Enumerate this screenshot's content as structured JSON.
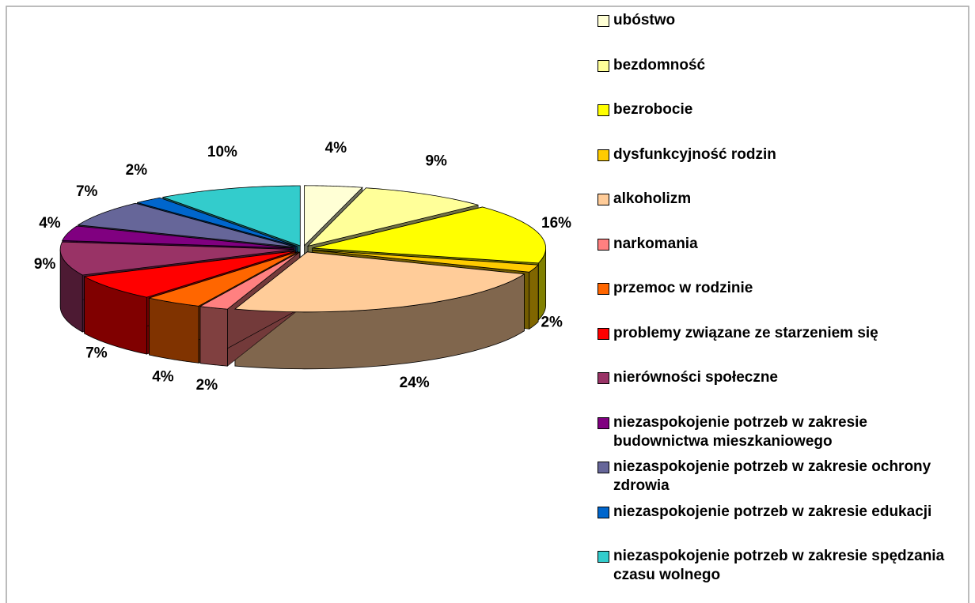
{
  "chart_data": {
    "type": "pie",
    "categories": [
      "ubóstwo",
      "bezdomność",
      "bezrobocie",
      "dysfunkcyjność rodzin",
      "alkoholizm",
      "narkomania",
      "przemoc w rodzinie",
      "problemy związane ze starzeniem się",
      "nierówności społeczne",
      "niezaspokojenie potrzeb w zakresie budownictwa mieszkaniowego",
      "niezaspokojenie potrzeb w zakresie ochrony zdrowia",
      "niezaspokojenie potrzeb w zakresie edukacji",
      "niezaspokojenie potrzeb w zakresie spędzania czasu wolnego"
    ],
    "values": [
      4,
      9,
      16,
      2,
      24,
      2,
      4,
      7,
      9,
      4,
      7,
      2,
      10
    ],
    "value_labels": [
      "4%",
      "9%",
      "16%",
      "2%",
      "24%",
      "2%",
      "4%",
      "7%",
      "9%",
      "4%",
      "7%",
      "2%",
      "10%"
    ],
    "colors": [
      "#FFFFD5",
      "#FFFF99",
      "#FFFF00",
      "#FFCC00",
      "#FFCC99",
      "#FF8080",
      "#FF6600",
      "#FF0000",
      "#993366",
      "#800080",
      "#666699",
      "#0066CC",
      "#33CCCC"
    ],
    "legend": "right"
  }
}
